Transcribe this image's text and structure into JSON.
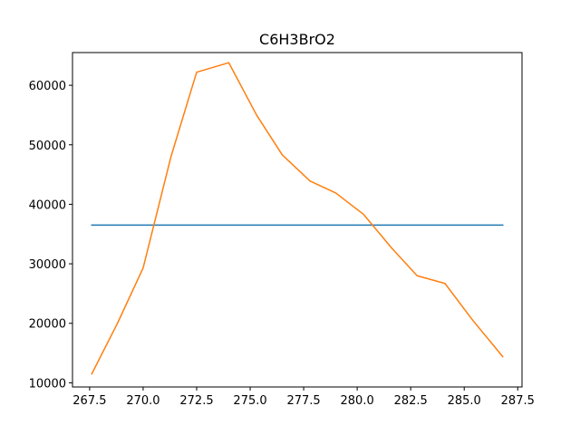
{
  "chart_data": {
    "type": "line",
    "title": "C6H3BrO2",
    "xlabel": "",
    "ylabel": "",
    "xlim": [
      266.7,
      287.7
    ],
    "ylim": [
      9300,
      65500
    ],
    "x_ticks": [
      267.5,
      270.0,
      272.5,
      275.0,
      277.5,
      280.0,
      282.5,
      285.0,
      287.5
    ],
    "x_tick_labels": [
      "267.5",
      "270.0",
      "272.5",
      "275.0",
      "277.5",
      "280.0",
      "282.5",
      "285.0",
      "287.5"
    ],
    "y_ticks": [
      10000,
      20000,
      30000,
      40000,
      50000,
      60000
    ],
    "y_tick_labels": [
      "10000",
      "20000",
      "30000",
      "40000",
      "50000",
      "60000"
    ],
    "grid": false,
    "series": [
      {
        "color": "#1f77b4",
        "x": [
          267.6,
          286.8
        ],
        "y": [
          36500,
          36500
        ]
      },
      {
        "color": "#ff7f0e",
        "x": [
          267.6,
          268.8,
          270.0,
          271.3,
          272.5,
          274.0,
          275.3,
          276.5,
          277.8,
          279.0,
          280.3,
          281.6,
          282.8,
          284.1,
          285.4,
          286.8
        ],
        "y": [
          11500,
          20000,
          29300,
          48000,
          62200,
          63800,
          55000,
          48300,
          43900,
          41900,
          38300,
          32700,
          28000,
          26700,
          20500,
          14400
        ]
      }
    ]
  }
}
